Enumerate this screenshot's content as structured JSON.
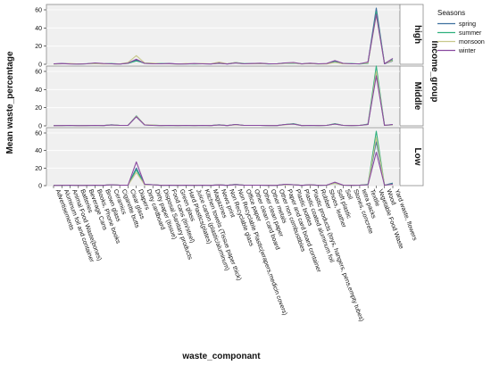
{
  "chart_data": {
    "type": "line",
    "xlabel": "waste_componant",
    "ylabel": "Mean waste_percentage",
    "facet_label": "Income_group",
    "legend_title": "Seasons",
    "legend_placement": "top-right",
    "ylim": [
      0,
      60
    ],
    "yticks": [
      0,
      20,
      40,
      60
    ],
    "categories": [
      "Advertisements",
      "Aluminum foil and container",
      "Animal Food Waste(bones)",
      "Batteries",
      "Beverage Cans",
      "Books, Phone books",
      "Brown glass",
      "Ceramics",
      "Cigarette butts",
      "Clear glass",
      "Diapers",
      "Dirty cardboard",
      "Dirty paper (tissue)",
      "Disposal Sanitary products",
      "Food cans (tin/steel)",
      "Green glass",
      "Hard Plastics(plates)",
      "Juice carton (plastic/aluminum)",
      "Kitchen towels (Tissue paper thick)",
      "Magazines",
      "News print",
      "Non Recyclable glass",
      "Non Recyclable Plastic(wrapers,medicin covers)",
      "Office paper",
      "Other clean card board",
      "Other clean paper",
      "Other metals",
      "Other non combustibles",
      "Paper and card board container",
      "Plastic bottles",
      "Plastic coated aluminum foil",
      "Plastic products (toys, hangers, pens,empty tubes)",
      "Rubber",
      "Shoes, leather",
      "Soft plastic",
      "Soil",
      "Stones, concrete",
      "tetra packs",
      "Textile",
      "Vegetable Food Waste",
      "Wood",
      "Yard waste, flowers"
    ],
    "series_colors": {
      "spring": "#3d6f9e",
      "summer": "#2fb07e",
      "monsoon": "#c8c88c",
      "winter": "#8a4aa0"
    },
    "panels": [
      {
        "label": "high",
        "series": [
          {
            "name": "spring",
            "values": [
              0.3,
              0.8,
              0.5,
              0.3,
              0.6,
              1.0,
              0.5,
              0.5,
              0.2,
              1.5,
              4.5,
              1.0,
              0.8,
              0.5,
              0.8,
              0.2,
              0.5,
              0.5,
              0.5,
              0.3,
              1.5,
              0.3,
              1.5,
              0.5,
              0.8,
              1.0,
              0.5,
              0.5,
              1.5,
              1.5,
              0.3,
              1.0,
              0.5,
              0.5,
              3.5,
              0.8,
              0.5,
              0.5,
              2.0,
              62,
              0.5,
              3.5
            ]
          },
          {
            "name": "summer",
            "values": [
              0.3,
              0.5,
              0.5,
              0.2,
              0.5,
              0.8,
              0.5,
              0.8,
              0.3,
              1.0,
              3.5,
              1.5,
              1.0,
              0.8,
              0.5,
              0.3,
              0.5,
              0.3,
              0.5,
              0.5,
              1.0,
              0.5,
              2.0,
              0.8,
              0.5,
              0.8,
              0.3,
              0.5,
              1.0,
              1.2,
              0.5,
              0.8,
              0.3,
              0.5,
              2.5,
              0.5,
              0.8,
              0.3,
              1.0,
              58,
              1.0,
              5.0
            ]
          },
          {
            "name": "monsoon",
            "values": [
              0.2,
              0.5,
              0.8,
              0.3,
              0.5,
              0.8,
              0.3,
              0.5,
              0.3,
              2.0,
              9.5,
              1.5,
              1.2,
              0.5,
              0.5,
              0.2,
              0.8,
              0.5,
              0.8,
              0.5,
              2.5,
              0.5,
              1.8,
              0.5,
              0.5,
              0.8,
              0.5,
              0.3,
              1.2,
              1.5,
              0.3,
              0.8,
              0.3,
              0.3,
              2.0,
              0.5,
              0.5,
              0.5,
              1.5,
              54,
              0.8,
              4.0
            ]
          },
          {
            "name": "winter",
            "values": [
              0.5,
              0.8,
              0.3,
              0.2,
              0.5,
              1.5,
              0.8,
              0.5,
              0.2,
              1.2,
              5.5,
              1.0,
              0.5,
              0.5,
              0.8,
              0.3,
              0.3,
              0.8,
              0.5,
              0.3,
              1.2,
              0.3,
              1.5,
              0.5,
              0.8,
              1.2,
              0.5,
              0.5,
              1.5,
              2.0,
              0.5,
              1.2,
              0.5,
              0.8,
              4.0,
              1.0,
              0.5,
              0.5,
              2.5,
              55,
              0.5,
              6.5
            ]
          }
        ]
      },
      {
        "label": "Middle",
        "series": [
          {
            "name": "spring",
            "values": [
              0.2,
              0.3,
              0.5,
              0.2,
              0.3,
              0.5,
              0.3,
              1.0,
              0.5,
              0.5,
              10,
              1.0,
              0.5,
              0.3,
              0.5,
              0.3,
              0.5,
              0.3,
              0.5,
              0.3,
              1.0,
              0.3,
              1.5,
              0.5,
              0.5,
              0.5,
              0.3,
              0.3,
              1.5,
              2.0,
              0.3,
              0.5,
              0.3,
              0.5,
              2.0,
              0.5,
              0.3,
              0.5,
              1.5,
              58,
              0.5,
              1.5
            ]
          },
          {
            "name": "summer",
            "values": [
              0.2,
              0.3,
              0.5,
              0.2,
              0.3,
              0.5,
              0.3,
              1.2,
              0.5,
              0.5,
              11,
              1.0,
              0.8,
              0.3,
              0.5,
              0.3,
              0.5,
              0.3,
              0.5,
              0.3,
              1.2,
              0.3,
              1.5,
              0.5,
              0.5,
              0.5,
              0.3,
              0.3,
              1.5,
              2.5,
              0.3,
              0.5,
              0.3,
              0.5,
              2.5,
              0.5,
              0.3,
              0.5,
              2.0,
              66,
              0.5,
              1.0
            ]
          },
          {
            "name": "monsoon",
            "values": [
              0.2,
              0.3,
              0.5,
              0.2,
              0.3,
              0.5,
              0.3,
              1.0,
              0.5,
              0.5,
              10.5,
              1.2,
              0.8,
              0.3,
              0.5,
              0.3,
              0.5,
              0.3,
              0.5,
              0.3,
              1.0,
              0.3,
              1.2,
              0.5,
              0.5,
              0.5,
              0.3,
              0.3,
              1.2,
              2.0,
              0.3,
              0.5,
              0.3,
              0.5,
              2.0,
              0.5,
              0.3,
              0.5,
              1.5,
              60,
              0.5,
              1.2
            ]
          },
          {
            "name": "winter",
            "values": [
              0.2,
              0.3,
              0.5,
              0.2,
              0.3,
              0.5,
              0.3,
              1.0,
              0.5,
              0.5,
              10,
              1.0,
              0.5,
              0.3,
              0.5,
              0.3,
              0.5,
              0.3,
              0.5,
              0.3,
              1.0,
              0.3,
              1.5,
              0.5,
              0.5,
              0.5,
              0.3,
              0.3,
              1.5,
              2.0,
              0.3,
              0.5,
              0.3,
              0.5,
              2.0,
              0.5,
              0.3,
              0.5,
              1.5,
              55,
              0.5,
              1.5
            ]
          }
        ]
      },
      {
        "label": "Low",
        "series": [
          {
            "name": "spring",
            "values": [
              0.2,
              0.3,
              0.5,
              0.2,
              0.3,
              0.5,
              0.3,
              1.0,
              0.5,
              0.5,
              20,
              1.5,
              1.0,
              0.3,
              0.5,
              0.3,
              0.5,
              0.3,
              0.5,
              0.3,
              0.8,
              0.3,
              1.2,
              0.5,
              0.5,
              0.5,
              0.3,
              0.3,
              1.5,
              1.0,
              0.3,
              1.0,
              0.3,
              0.5,
              3.0,
              0.5,
              0.3,
              0.5,
              1.0,
              50,
              0.5,
              3.0
            ]
          },
          {
            "name": "summer",
            "values": [
              0.2,
              0.3,
              0.5,
              0.2,
              0.3,
              0.5,
              0.3,
              1.0,
              0.5,
              0.5,
              18,
              1.2,
              1.0,
              0.3,
              0.5,
              0.3,
              0.5,
              0.3,
              0.5,
              0.3,
              0.8,
              0.3,
              1.5,
              0.5,
              0.5,
              0.5,
              0.3,
              0.3,
              1.2,
              1.0,
              0.3,
              0.8,
              0.3,
              0.5,
              2.5,
              0.5,
              0.3,
              0.5,
              1.5,
              62,
              0.5,
              2.0
            ]
          },
          {
            "name": "monsoon",
            "values": [
              0.2,
              0.3,
              0.5,
              0.2,
              0.3,
              0.5,
              0.3,
              1.0,
              0.5,
              0.5,
              15,
              1.0,
              1.0,
              0.3,
              0.5,
              0.3,
              0.5,
              0.3,
              0.5,
              0.3,
              0.8,
              0.3,
              1.2,
              0.5,
              0.5,
              0.5,
              0.3,
              0.3,
              1.2,
              1.0,
              0.3,
              0.8,
              0.3,
              0.5,
              2.5,
              0.5,
              0.3,
              0.5,
              1.0,
              55,
              0.5,
              1.5
            ]
          },
          {
            "name": "winter",
            "values": [
              0.2,
              0.3,
              0.5,
              0.2,
              0.3,
              0.5,
              0.3,
              1.0,
              0.5,
              0.5,
              27,
              1.5,
              1.0,
              0.3,
              0.5,
              0.3,
              0.5,
              0.3,
              0.5,
              0.3,
              0.8,
              0.3,
              1.2,
              0.5,
              0.5,
              0.5,
              0.3,
              0.3,
              1.5,
              1.0,
              0.3,
              1.0,
              0.3,
              0.5,
              4.0,
              0.5,
              0.3,
              0.5,
              1.0,
              38,
              0.5,
              1.5
            ]
          }
        ]
      }
    ]
  }
}
